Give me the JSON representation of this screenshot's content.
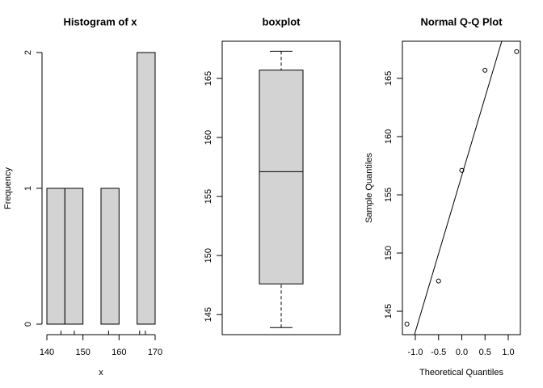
{
  "chart_data": [
    {
      "type": "histogram",
      "title": "Histogram of x",
      "x_label": "x",
      "y_label": "Frequency",
      "bins": [
        140,
        145,
        150,
        155,
        160,
        165,
        170
      ],
      "values": [
        1,
        1,
        0,
        1,
        0,
        2
      ],
      "color": "#d3d3d3",
      "rug": [
        143.9,
        147.6,
        157.1,
        165.7,
        167.3
      ],
      "xlim": [
        140,
        170
      ],
      "xticks": [
        140,
        150,
        160,
        170
      ],
      "ylim": [
        0,
        2
      ],
      "yticks": [
        0,
        1,
        2
      ]
    },
    {
      "type": "boxplot",
      "title": "boxplot",
      "color": "#d3d3d3",
      "whisker_low": 143.9,
      "q1": 147.6,
      "median": 157.1,
      "q3": 165.7,
      "whisker_high": 167.3,
      "ylim": [
        143.3,
        168.15
      ],
      "yticks": [
        145,
        150,
        155,
        160,
        165
      ]
    },
    {
      "type": "qq",
      "title": "Normal Q-Q Plot",
      "x_label": "Theoretical Quantiles",
      "y_label": "Sample Quantiles",
      "x": [
        -1.18,
        -0.5,
        0,
        0.5,
        1.18
      ],
      "values": [
        143.9,
        147.6,
        157.1,
        165.7,
        167.3
      ],
      "reference_line": {
        "slope": 13.42,
        "intercept": 156.65
      },
      "xlim": [
        -1.278,
        1.261
      ],
      "xticks": [
        {
          "value": -1,
          "label": "-1.0"
        },
        {
          "value": -0.5,
          "label": "-0.5"
        },
        {
          "value": 0,
          "label": "0.0"
        },
        {
          "value": 0.5,
          "label": "0.5"
        },
        {
          "value": 1,
          "label": "1.0"
        }
      ],
      "ylim": [
        142.99,
        168.19
      ],
      "yticks": [
        145,
        150,
        155,
        160,
        165
      ]
    }
  ]
}
